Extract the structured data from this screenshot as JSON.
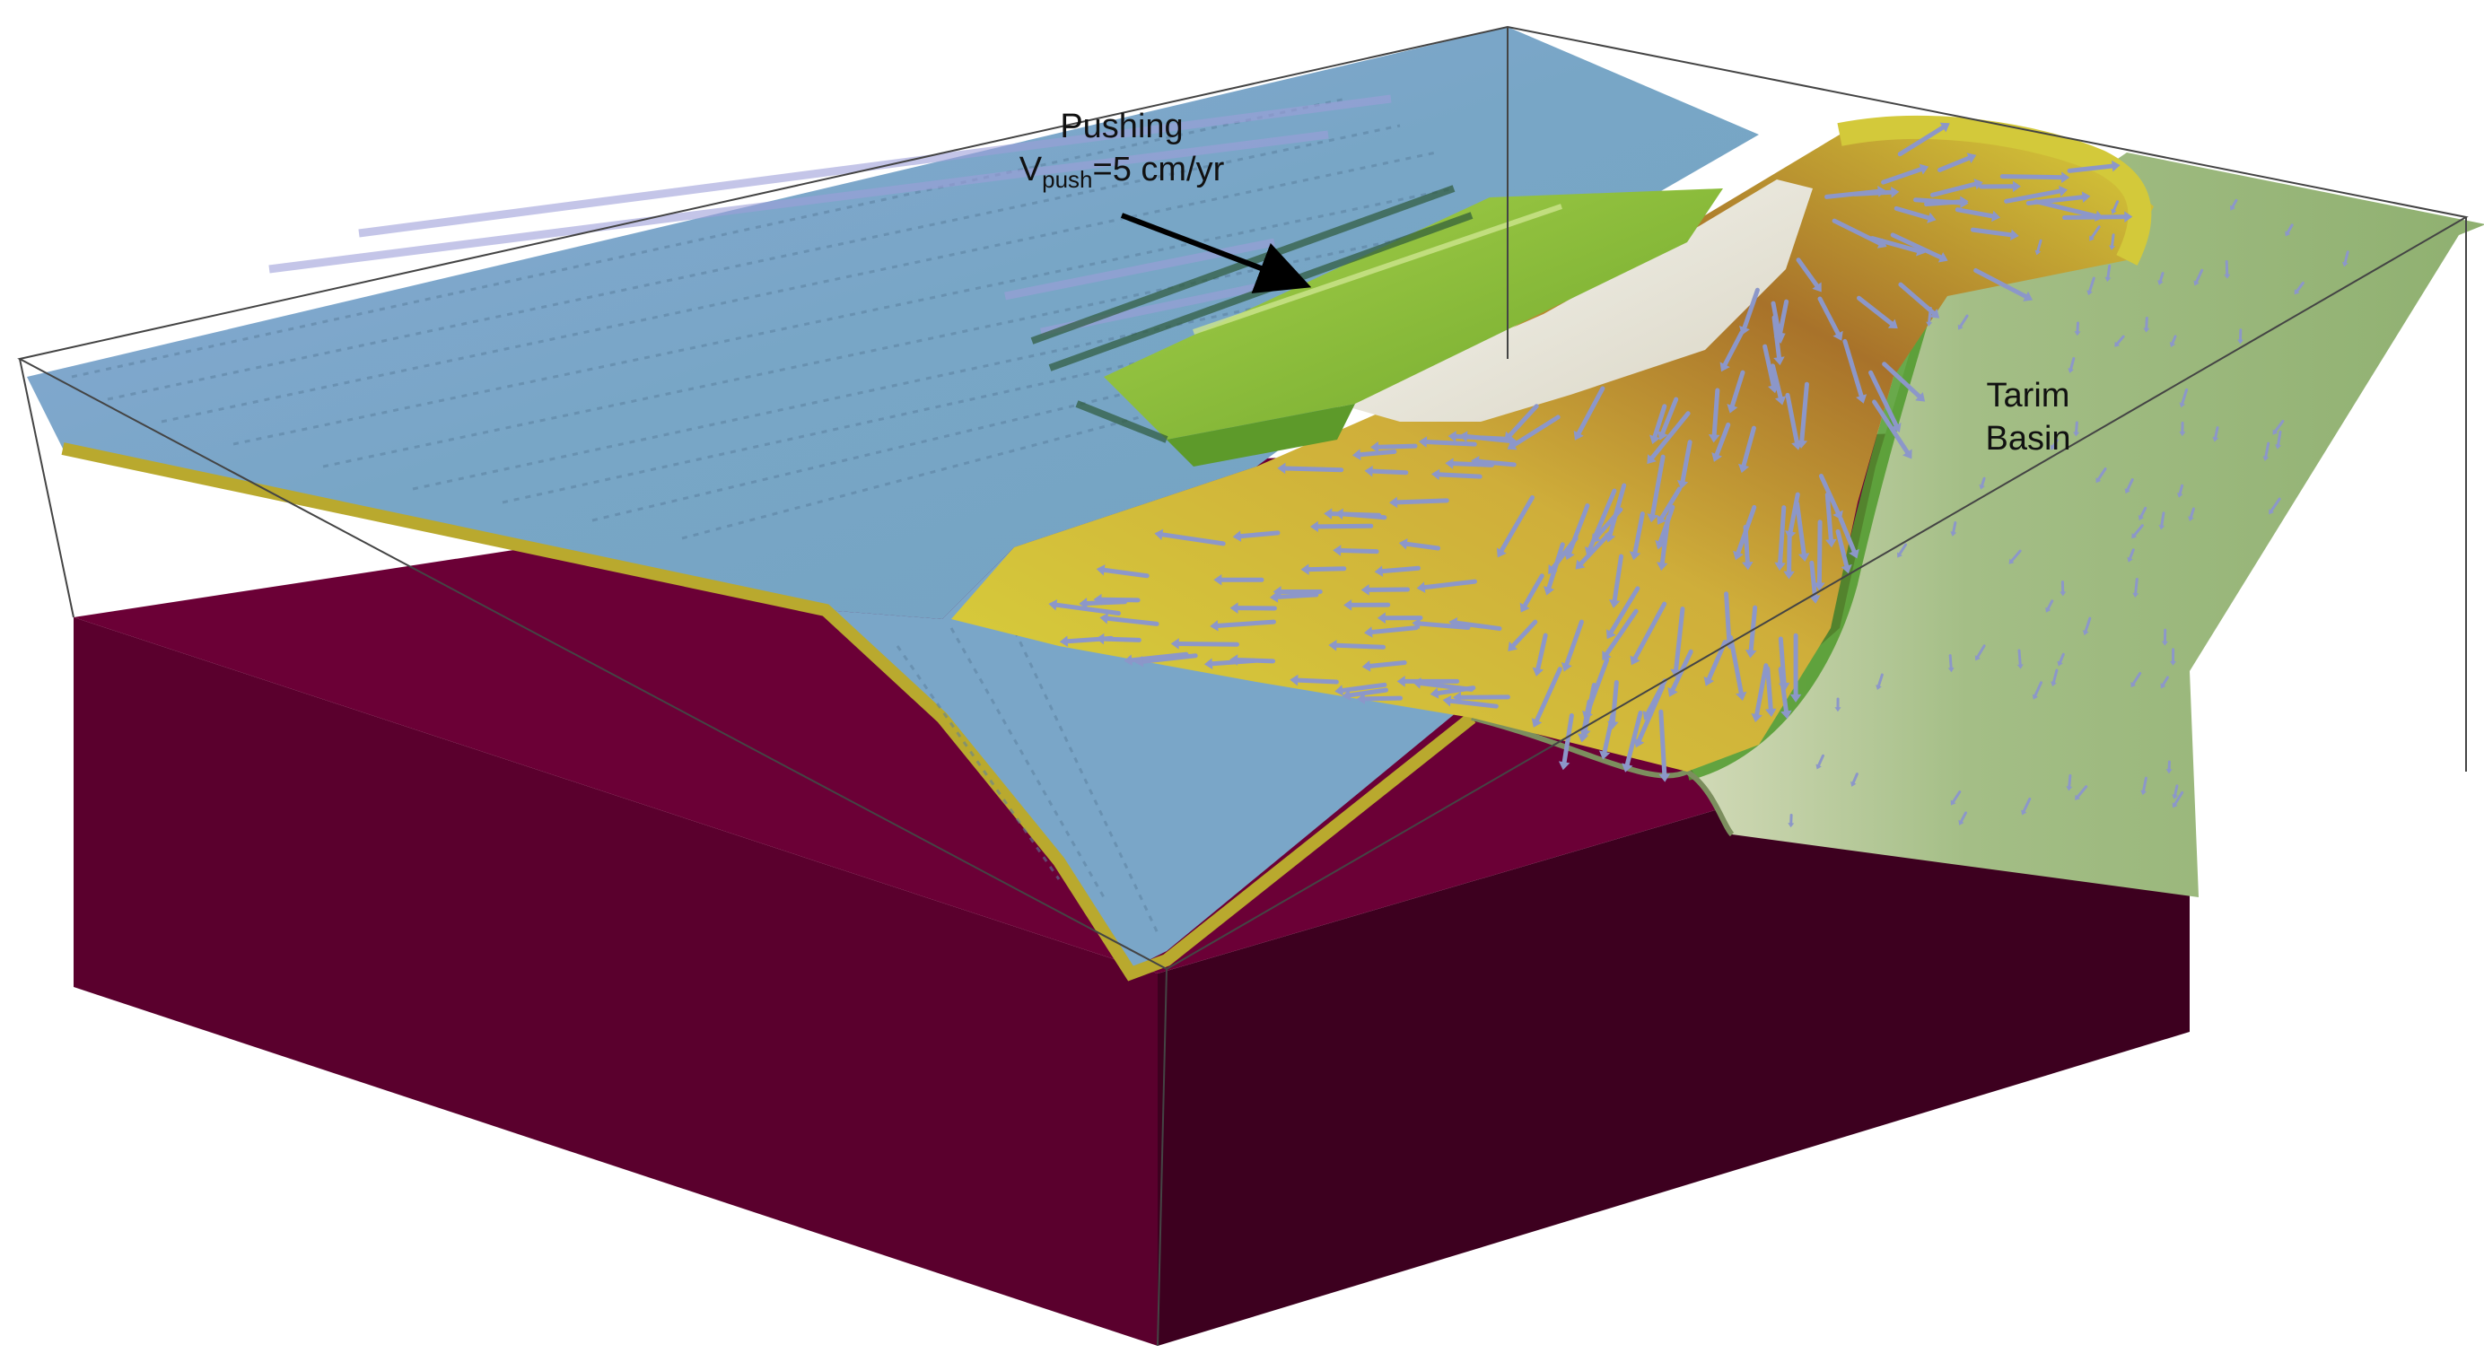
{
  "annotations": {
    "pushing": {
      "title": "Pushing",
      "velocity_symbol": "V",
      "velocity_subscript": "push",
      "velocity_value": "=5 cm/yr"
    },
    "tarim": {
      "line1": "Tarim",
      "line2": "Basin"
    }
  },
  "colors": {
    "box_top": "#6b0036",
    "box_side_left": "#5a002d",
    "box_side_front": "#3d001f",
    "ocean_surface": "#7da7c7",
    "ocean_shadow": "#9aa6d3",
    "plateau_yellow": "#d8d23a",
    "plateau_brown": "#a8722a",
    "snow": "#efeee6",
    "basin_green": "#8fb070",
    "indenter_green": "#86bb3a",
    "velocity_arrow": "#8c97c9",
    "wireframe": "#444444",
    "annotation_arrow": "#000000"
  }
}
